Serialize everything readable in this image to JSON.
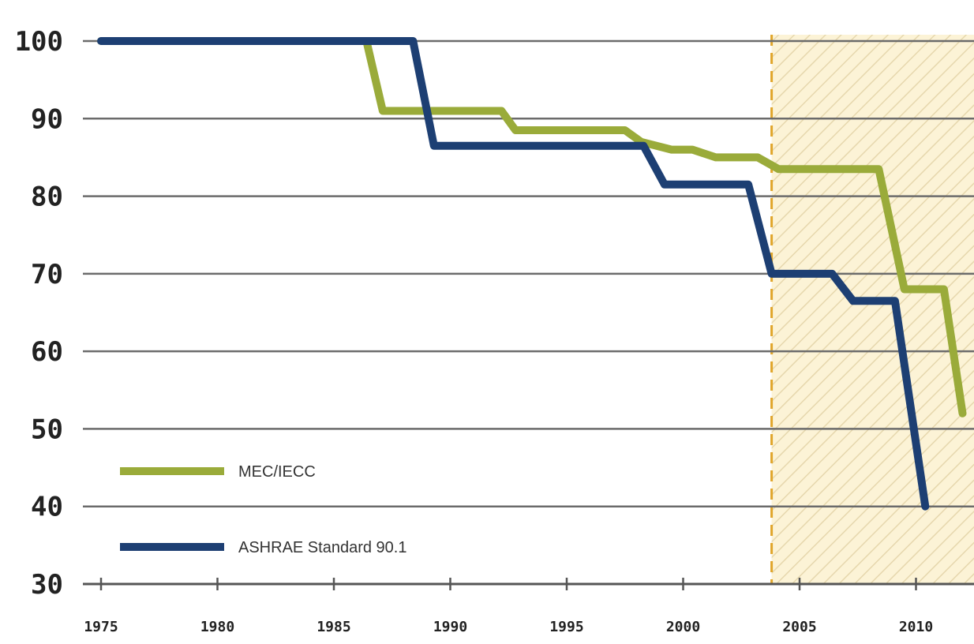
{
  "chart_data": {
    "type": "line",
    "title": "",
    "xlabel": "",
    "ylabel": "",
    "xlim": [
      1975,
      2012
    ],
    "ylim": [
      30,
      100
    ],
    "x_ticks": [
      1975,
      1980,
      1985,
      1990,
      1995,
      2000,
      2005,
      2010
    ],
    "x_tick_labels": [
      "1975",
      "1980",
      "1985",
      "1990",
      "1995",
      "2000",
      "2005",
      "2010"
    ],
    "y_ticks": [
      30,
      40,
      50,
      60,
      70,
      80,
      90,
      100
    ],
    "y_tick_labels": [
      "30",
      "40",
      "50",
      "60",
      "70",
      "80",
      "90",
      "100"
    ],
    "grid": "horizontal",
    "legend_position": "bottom-left",
    "shaded_region": {
      "x_start": 2003.8,
      "x_end": 2012,
      "fill": "#fbf0cc",
      "hatch": "#e8d9a8",
      "border": "#e0a52a"
    },
    "series": [
      {
        "name": "MEC/IECC",
        "color": "#9aab3a",
        "points": [
          [
            1975,
            100
          ],
          [
            1986.4,
            100
          ],
          [
            1987.1,
            91
          ],
          [
            1992.2,
            91
          ],
          [
            1992.8,
            88.5
          ],
          [
            1997.5,
            88.5
          ],
          [
            1998.2,
            87
          ],
          [
            1999.5,
            86
          ],
          [
            2000.4,
            86
          ],
          [
            2001.4,
            85
          ],
          [
            2003.2,
            85
          ],
          [
            2004.1,
            83.5
          ],
          [
            2008.4,
            83.5
          ],
          [
            2009.5,
            68
          ],
          [
            2011.2,
            68
          ],
          [
            2012,
            52
          ]
        ]
      },
      {
        "name": "ASHRAE Standard 90.1",
        "color": "#1d3f73",
        "points": [
          [
            1975,
            100
          ],
          [
            1988.4,
            100
          ],
          [
            1989.3,
            86.5
          ],
          [
            1998.3,
            86.5
          ],
          [
            1999.2,
            81.5
          ],
          [
            2002.8,
            81.5
          ],
          [
            2003.8,
            70
          ],
          [
            2006.4,
            70
          ],
          [
            2007.3,
            66.5
          ],
          [
            2009.1,
            66.5
          ],
          [
            2010.4,
            40
          ]
        ]
      }
    ]
  }
}
